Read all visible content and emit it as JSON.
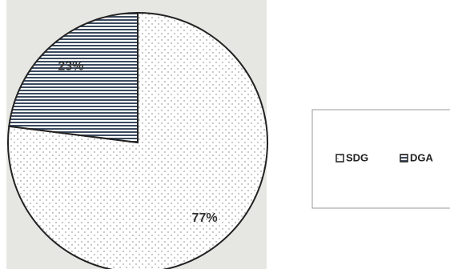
{
  "chart_data": {
    "type": "pie",
    "categories": [
      "SDG",
      "DGA"
    ],
    "values": [
      77,
      23
    ],
    "value_labels": [
      "77%",
      "23%"
    ],
    "colors": [
      "#ffffff",
      "#3b4a5e"
    ]
  }
}
